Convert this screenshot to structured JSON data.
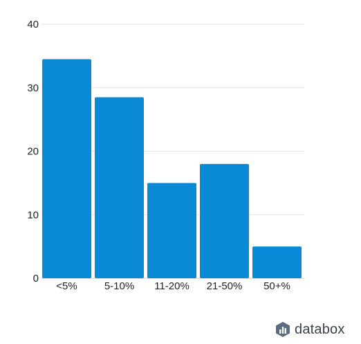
{
  "chart_data": {
    "type": "bar",
    "categories": [
      "<5%",
      "5-10%",
      "11-20%",
      "21-50%",
      "50+%"
    ],
    "values": [
      34.5,
      28.5,
      15,
      18,
      5
    ],
    "title": "",
    "xlabel": "",
    "ylabel": "",
    "ylim": [
      0,
      40
    ],
    "yticks": [
      "0",
      "10",
      "20",
      "30",
      "40"
    ],
    "grid": true,
    "legend": "none",
    "bar_color": "#0a8ad6",
    "grid_color": "#e3e3e3",
    "axis_color": "#cccccc"
  },
  "brand": {
    "name": "databox",
    "logo_icon": "databox-logo-icon",
    "colors": [
      "#5b6b80",
      "#2b8fd6",
      "#1f4f8f"
    ]
  }
}
